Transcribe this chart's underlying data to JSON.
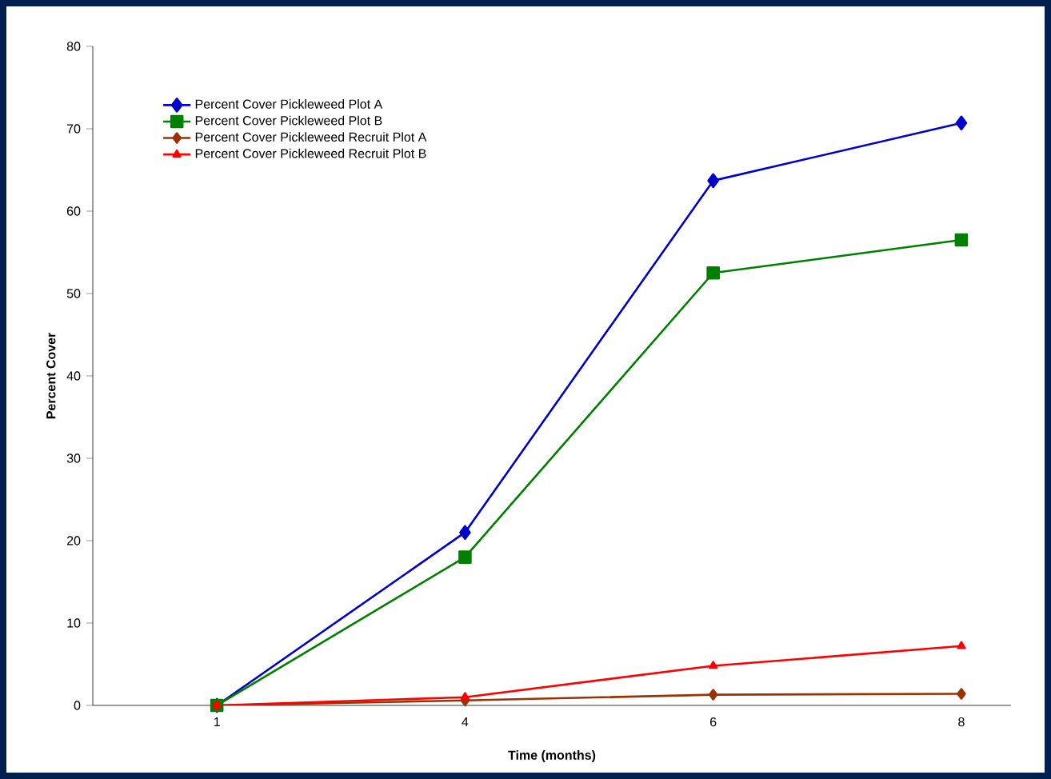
{
  "chart_data": {
    "type": "line",
    "xlabel": "Time (months)",
    "ylabel": "Percent Cover",
    "categories": [
      "1",
      "4",
      "6",
      "8"
    ],
    "series": [
      {
        "name": "Percent Cover Pickleweed Plot A",
        "color": "#0000cc",
        "marker": "diamond",
        "values": [
          0,
          21,
          63.7,
          70.7
        ]
      },
      {
        "name": "Percent Cover Pickleweed Plot B",
        "color": "#008000",
        "marker": "square",
        "values": [
          0,
          18,
          52.5,
          56.5
        ]
      },
      {
        "name": "Percent Cover Pickleweed Recruit Plot A",
        "color": "#993300",
        "marker": "diamond",
        "values": [
          0,
          0.6,
          1.3,
          1.4
        ]
      },
      {
        "name": "Percent Cover Pickleweed Recruit Plot B",
        "color": "#ff0000",
        "marker": "triangle",
        "values": [
          0,
          1,
          4.8,
          7.2
        ]
      }
    ],
    "ylim": [
      0,
      80
    ],
    "yticks": [
      0,
      10,
      20,
      30,
      40,
      50,
      60,
      70,
      80
    ],
    "grid": false,
    "legend": "top left",
    "line_style": "solid"
  }
}
